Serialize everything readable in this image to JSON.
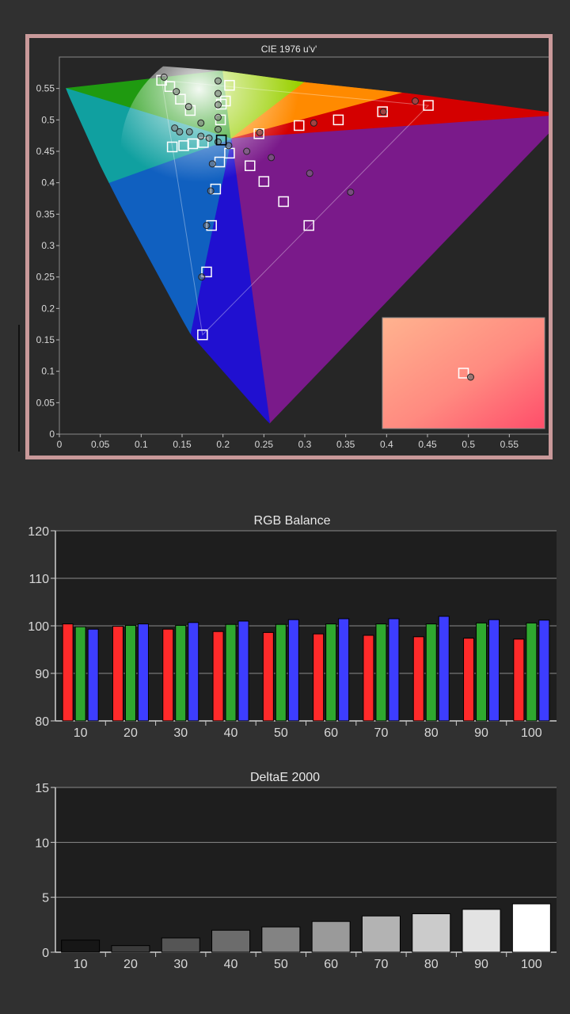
{
  "chart_data": [
    {
      "type": "scatter",
      "title": "CIE 1976 u'v'",
      "xlabel": "",
      "ylabel": "",
      "xlim": [
        0,
        0.6
      ],
      "ylim": [
        0,
        0.6
      ],
      "x_ticks": [
        "0",
        "0.05",
        "0.1",
        "0.15",
        "0.2",
        "0.25",
        "0.3",
        "0.35",
        "0.4",
        "0.45",
        "0.5",
        "0.55"
      ],
      "y_ticks": [
        "0",
        "0.05",
        "0.1",
        "0.15",
        "0.2",
        "0.25",
        "0.3",
        "0.35",
        "0.4",
        "0.45",
        "0.5",
        "0.55"
      ],
      "grid": false,
      "gamut_triangle": [
        [
          0.451,
          0.523
        ],
        [
          0.125,
          0.563
        ],
        [
          0.175,
          0.158
        ]
      ],
      "white_point": [
        0.198,
        0.468
      ],
      "target_points": [
        [
          0.125,
          0.563
        ],
        [
          0.135,
          0.553
        ],
        [
          0.148,
          0.533
        ],
        [
          0.16,
          0.515
        ],
        [
          0.138,
          0.457
        ],
        [
          0.152,
          0.459
        ],
        [
          0.163,
          0.462
        ],
        [
          0.176,
          0.464
        ],
        [
          0.198,
          0.525
        ],
        [
          0.197,
          0.5
        ],
        [
          0.208,
          0.447
        ],
        [
          0.196,
          0.433
        ],
        [
          0.191,
          0.39
        ],
        [
          0.186,
          0.332
        ],
        [
          0.18,
          0.258
        ],
        [
          0.175,
          0.158
        ],
        [
          0.208,
          0.555
        ],
        [
          0.203,
          0.53
        ],
        [
          0.233,
          0.427
        ],
        [
          0.244,
          0.478
        ],
        [
          0.25,
          0.402
        ],
        [
          0.274,
          0.37
        ],
        [
          0.305,
          0.332
        ],
        [
          0.293,
          0.491
        ],
        [
          0.341,
          0.5
        ],
        [
          0.395,
          0.513
        ],
        [
          0.451,
          0.523
        ]
      ],
      "measured_points": [
        [
          0.128,
          0.568
        ],
        [
          0.143,
          0.545
        ],
        [
          0.158,
          0.521
        ],
        [
          0.141,
          0.487
        ],
        [
          0.147,
          0.481
        ],
        [
          0.159,
          0.481
        ],
        [
          0.173,
          0.474
        ],
        [
          0.183,
          0.471
        ],
        [
          0.194,
          0.562
        ],
        [
          0.194,
          0.542
        ],
        [
          0.194,
          0.524
        ],
        [
          0.194,
          0.504
        ],
        [
          0.194,
          0.485
        ],
        [
          0.194,
          0.465
        ],
        [
          0.173,
          0.495
        ],
        [
          0.187,
          0.43
        ],
        [
          0.185,
          0.387
        ],
        [
          0.18,
          0.332
        ],
        [
          0.174,
          0.25
        ],
        [
          0.207,
          0.459
        ],
        [
          0.229,
          0.45
        ],
        [
          0.245,
          0.48
        ],
        [
          0.259,
          0.44
        ],
        [
          0.311,
          0.495
        ],
        [
          0.306,
          0.415
        ],
        [
          0.356,
          0.385
        ],
        [
          0.396,
          0.513
        ],
        [
          0.435,
          0.53
        ]
      ],
      "inset": {
        "target": [
          0.5,
          0.1
        ],
        "measured": [
          0.502,
          0.097
        ]
      }
    },
    {
      "type": "bar",
      "title": "RGB Balance",
      "xlabel": "",
      "ylabel": "",
      "categories": [
        "10",
        "20",
        "30",
        "40",
        "50",
        "60",
        "70",
        "80",
        "90",
        "100"
      ],
      "ylim": [
        80,
        120
      ],
      "y_ticks": [
        "80",
        "90",
        "100",
        "110",
        "120"
      ],
      "grid": true,
      "series": [
        {
          "color": "#ff2a2a",
          "values": [
            100.4,
            99.9,
            99.3,
            98.8,
            98.6,
            98.3,
            98.0,
            97.7,
            97.4,
            97.2
          ]
        },
        {
          "color": "#2fa82f",
          "values": [
            99.8,
            100.1,
            100.1,
            100.3,
            100.3,
            100.4,
            100.4,
            100.4,
            100.6,
            100.6
          ]
        },
        {
          "color": "#3d3dff",
          "values": [
            99.3,
            100.4,
            100.7,
            101.0,
            101.3,
            101.5,
            101.5,
            102.0,
            101.3,
            101.2
          ]
        }
      ]
    },
    {
      "type": "bar",
      "title": "DeltaE 2000",
      "xlabel": "",
      "ylabel": "",
      "categories": [
        "10",
        "20",
        "30",
        "40",
        "50",
        "60",
        "70",
        "80",
        "90",
        "100"
      ],
      "ylim": [
        0,
        15
      ],
      "y_ticks": [
        "0",
        "5",
        "10",
        "15"
      ],
      "grid": true,
      "values": [
        1.1,
        0.6,
        1.3,
        2.0,
        2.3,
        2.8,
        3.3,
        3.5,
        3.9,
        4.4
      ],
      "bar_colors": [
        "#161616",
        "#3a3a3a",
        "#555555",
        "#6c6c6c",
        "#838383",
        "#9a9a9a",
        "#b3b3b3",
        "#cbcbcb",
        "#e3e3e3",
        "#ffffff"
      ]
    }
  ]
}
